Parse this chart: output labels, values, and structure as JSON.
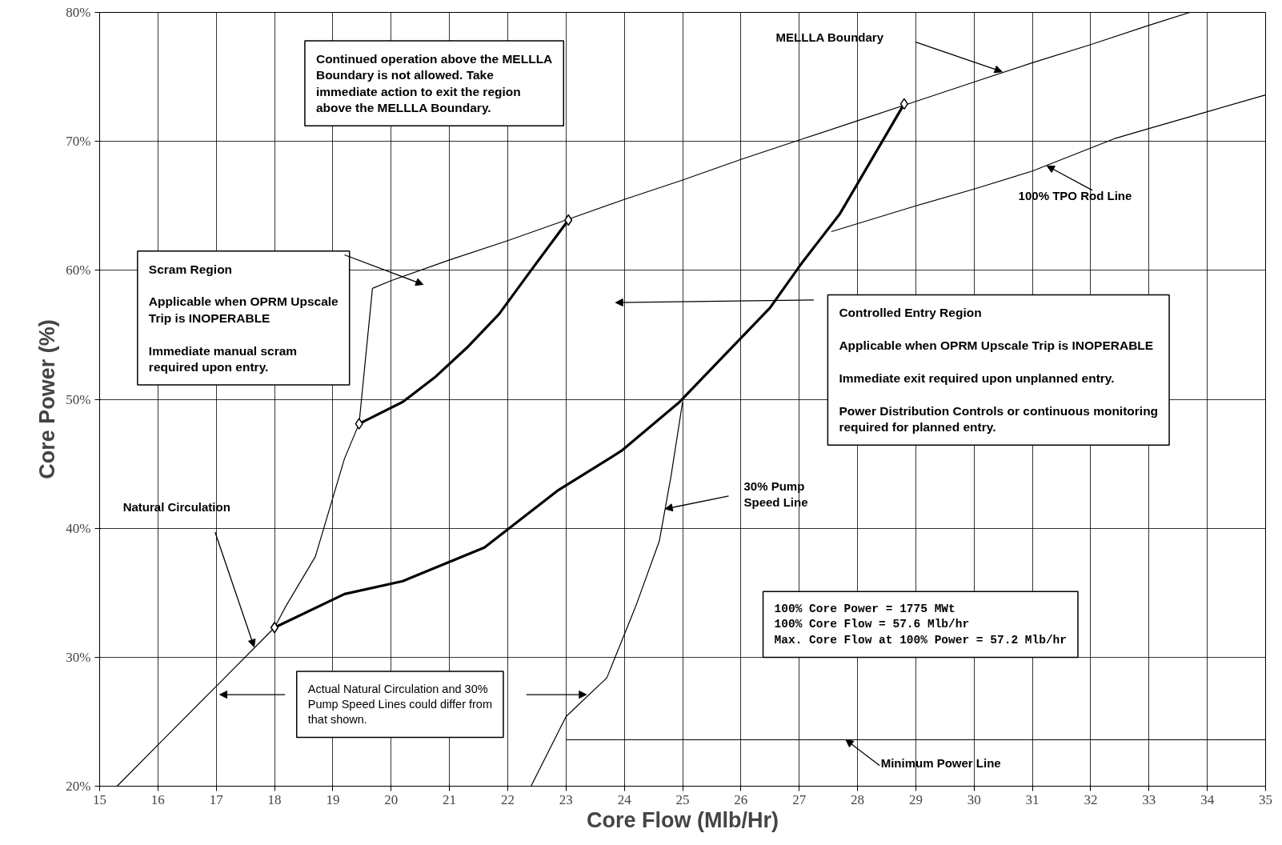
{
  "chart_data": {
    "type": "line",
    "xlabel": "Core Flow (Mlb/Hr)",
    "ylabel": "Core Power (%)",
    "xlim": [
      15,
      35
    ],
    "ylim": [
      20,
      80
    ],
    "xticks": [
      15,
      16,
      17,
      18,
      19,
      20,
      21,
      22,
      23,
      24,
      25,
      26,
      27,
      28,
      29,
      30,
      31,
      32,
      33,
      34,
      35
    ],
    "yticks": [
      {
        "value": 20,
        "label": "20%"
      },
      {
        "value": 30,
        "label": "30%"
      },
      {
        "value": 40,
        "label": "40%"
      },
      {
        "value": 50,
        "label": "50%"
      },
      {
        "value": 60,
        "label": "60%"
      },
      {
        "value": 70,
        "label": "70%"
      },
      {
        "value": 80,
        "label": "80%"
      }
    ],
    "grid": true,
    "line_style": "solid",
    "marker": "none",
    "series": [
      {
        "color": "#000000",
        "x": [
          19.68,
          20,
          21,
          22,
          23,
          24,
          25,
          26,
          27,
          28,
          29,
          30,
          31,
          32,
          33,
          33.7
        ],
        "values": [
          58.6,
          59.2,
          60.8,
          62.3,
          63.9,
          65.5,
          67,
          68.6,
          70.1,
          71.6,
          73.1,
          74.6,
          76.1,
          77.5,
          79,
          80
        ]
      },
      {
        "color": "#000000",
        "x": [
          27.55,
          29,
          30,
          31,
          32.4,
          33,
          34,
          35
        ],
        "values": [
          63,
          65,
          66.3,
          67.7,
          70.2,
          71,
          72.3,
          73.6
        ]
      },
      {
        "color": "#000000",
        "x": [
          15.3,
          16,
          17.1,
          18,
          18.2,
          18.7,
          19.2,
          19.45,
          19.68
        ],
        "values": [
          20,
          23.2,
          28.2,
          32.3,
          34,
          37.8,
          45.4,
          48.1,
          58.6
        ]
      },
      {
        "color": "#000000",
        "x": [
          22.4,
          23,
          23.7,
          24.2,
          24.6,
          24.8,
          25
        ],
        "values": [
          20,
          25.4,
          28.4,
          34,
          39,
          44,
          49.8
        ]
      },
      {
        "color": "#000000",
        "x": [
          23,
          35
        ],
        "values": [
          23.6,
          23.6
        ]
      },
      {
        "color": "#000000",
        "x": [
          19.45,
          20.2,
          20.75,
          21.3,
          21.85,
          22.4,
          23.04
        ],
        "values": [
          48.1,
          49.8,
          51.7,
          54,
          56.6,
          60,
          63.9
        ]
      },
      {
        "color": "#000000",
        "x": [
          18,
          19.2,
          20.2,
          21.6,
          22.85,
          23.95,
          24.95,
          25.5,
          26.5,
          27.05,
          27.7,
          28.8
        ],
        "values": [
          32.3,
          34.9,
          35.9,
          38.5,
          42.9,
          46,
          49.8,
          52.4,
          57.1,
          60.6,
          64.4,
          72.9
        ]
      },
      {
        "type": "scatter",
        "marker": "diamond",
        "color": "#000000",
        "x": [
          18,
          19.45,
          23.04,
          28.8
        ],
        "values": [
          32.3,
          48.1,
          63.9,
          72.9
        ]
      }
    ],
    "annotations": [
      "Continued operation above the MELLLA Boundary is not allowed. Take immediate action to exit the region above the MELLLA Boundary.",
      "Scram Region\nApplicable when OPRM Upscale Trip is INOPERABLE\nImmediate manual scram required upon entry.",
      "Controlled Entry Region\nApplicable when OPRM Upscale Trip is INOPERABLE\nImmediate exit required upon unplanned entry.\nPower Distribution Controls or continuous monitoring required for planned entry.",
      "100% Core Power = 1775 MWt\n100% Core Flow = 57.6 Mlb/hr\nMax. Core Flow at 100% Power = 57.2 Mlb/hr",
      "Actual Natural Circulation and 30% Pump Speed Lines could differ from that shown.",
      "MELLLA Boundary",
      "Natural Circulation",
      {
        "text": "100% TPO Rod Line",
        "x": 31.25,
        "y": 68.1
      },
      {
        "text": "30% Pump Speed Line",
        "x": 24.7,
        "y": 41.5
      },
      {
        "text": "Minimum Power Line",
        "x": 27.8,
        "y": 23.6
      }
    ]
  }
}
